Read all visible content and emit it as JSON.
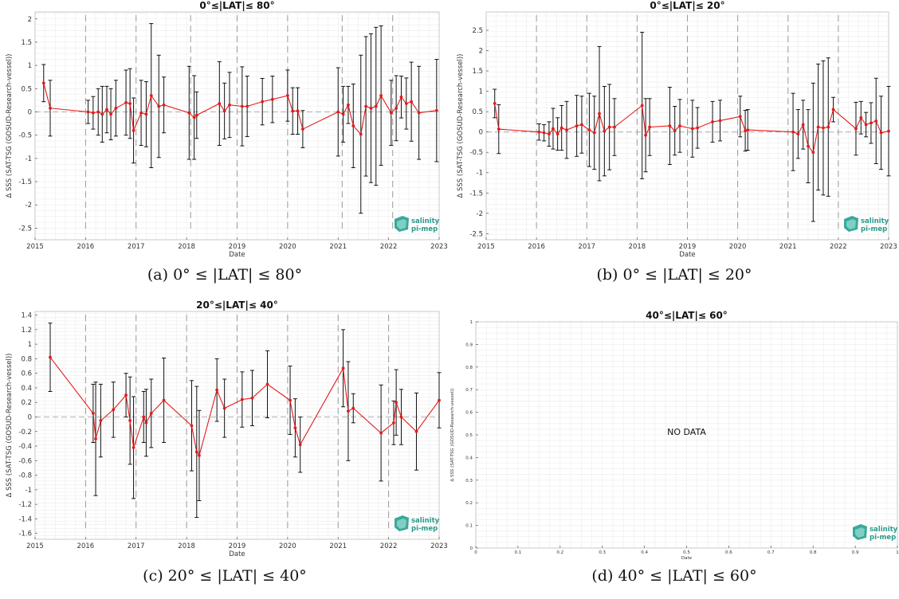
{
  "logo": {
    "line1": "salinity",
    "line2": "pi-mep",
    "color": "#2a9a8a"
  },
  "colors": {
    "series": "#e41a1c",
    "errorbar": "#111111",
    "vline": "#9a9a9a",
    "zeroline": "#b0b0b0",
    "grid": "#ececec"
  },
  "panels": [
    {
      "caption": "(a) 0° ≤ |LAT| ≤ 80°",
      "chart_data": {
        "type": "line",
        "title": "0°≤|LAT|≤ 80°",
        "xlabel": "Date",
        "ylabel": "Δ SSS (SAT-TSG (GOSUD-Research-vessel))",
        "xlim": [
          2015,
          2023
        ],
        "ylim": [
          -2.75,
          2.15
        ],
        "xticks": [
          2015,
          2016,
          2017,
          2018,
          2019,
          2020,
          2021,
          2022,
          2023
        ],
        "yticks": [
          -2.5,
          -2,
          -1.5,
          -1,
          -0.5,
          0,
          0.5,
          1,
          1.5,
          2
        ],
        "ytick_labels": [
          "-2.5",
          "-2",
          "-1.5",
          "-1",
          "-0.5",
          "0",
          "0.5",
          "1",
          "1.5",
          "2"
        ],
        "vlines": [
          2016,
          2017,
          2018.08,
          2019,
          2020,
          2021.08,
          2022.08
        ],
        "grid": true,
        "series": [
          {
            "x": [
              2015.17,
              2015.3,
              2016.05,
              2016.15,
              2016.25,
              2016.33,
              2016.42,
              2016.5,
              2016.6,
              2016.8,
              2016.88,
              2016.95,
              2017.1,
              2017.2,
              2017.3,
              2017.45,
              2017.55,
              2018.05,
              2018.15,
              2018.2,
              2018.65,
              2018.75,
              2018.85,
              2019.1,
              2019.2,
              2019.5,
              2019.7,
              2020,
              2020.1,
              2020.2,
              2020.3,
              2021,
              2021.1,
              2021.2,
              2021.3,
              2021.45,
              2021.55,
              2021.65,
              2021.75,
              2021.85,
              2022.05,
              2022.15,
              2022.25,
              2022.35,
              2022.45,
              2022.6,
              2022.95
            ],
            "y": [
              0.62,
              0.08,
              0,
              -0.02,
              0,
              -0.05,
              0.05,
              -0.05,
              0.08,
              0.2,
              0.18,
              -0.4,
              -0.02,
              -0.05,
              0.35,
              0.12,
              0.15,
              -0.02,
              -0.12,
              -0.07,
              0.18,
              0.02,
              0.15,
              0.12,
              0.12,
              0.22,
              0.27,
              0.35,
              0.02,
              0.02,
              -0.37,
              0,
              -0.05,
              0.15,
              -0.3,
              -0.48,
              0.12,
              0.08,
              0.12,
              0.35,
              -0.02,
              0.08,
              0.32,
              0.18,
              0.22,
              -0.02,
              0.03
            ],
            "err": [
              0.4,
              0.6,
              0.25,
              0.35,
              0.5,
              0.6,
              0.5,
              0.55,
              0.6,
              0.7,
              0.75,
              0.7,
              0.7,
              0.7,
              1.55,
              1.1,
              0.6,
              1.0,
              0.9,
              0.5,
              0.9,
              0.6,
              0.7,
              0.85,
              0.65,
              0.5,
              0.5,
              0.55,
              0.5,
              0.5,
              0.4,
              0.95,
              0.6,
              0.4,
              0.9,
              1.7,
              1.5,
              1.6,
              1.7,
              1.5,
              0.7,
              0.7,
              0.45,
              0.55,
              0.85,
              1.0,
              1.1
            ]
          }
        ]
      }
    },
    {
      "caption": "(b) 0° ≤ |LAT| ≤ 20°",
      "chart_data": {
        "type": "line",
        "title": "0°≤|LAT|≤ 20°",
        "xlabel": "Date",
        "ylabel": "Δ SSS (SAT-TSG (GOSUD-Research-vessel))",
        "xlim": [
          2015,
          2023
        ],
        "ylim": [
          -2.65,
          2.95
        ],
        "xticks": [
          2015,
          2016,
          2017,
          2018,
          2019,
          2020,
          2021,
          2022,
          2023
        ],
        "yticks": [
          -2.5,
          -2,
          -1.5,
          -1,
          -0.5,
          0,
          0.5,
          1,
          1.5,
          2,
          2.5
        ],
        "ytick_labels": [
          "-2.5",
          "-2",
          "-1.5",
          "-1",
          "-0.5",
          "0",
          "0.5",
          "1",
          "1.5",
          "2",
          "2.5"
        ],
        "vlines": [
          2016,
          2017,
          2018,
          2019,
          2020,
          2021,
          2022
        ],
        "grid": true,
        "series": [
          {
            "x": [
              2015.17,
              2015.25,
              2016.05,
              2016.15,
              2016.25,
              2016.33,
              2016.42,
              2016.5,
              2016.6,
              2016.8,
              2016.9,
              2017.05,
              2017.15,
              2017.25,
              2017.35,
              2017.45,
              2017.55,
              2018.1,
              2018.17,
              2018.25,
              2018.65,
              2018.75,
              2018.85,
              2019.1,
              2019.2,
              2019.5,
              2019.65,
              2020.05,
              2020.15,
              2020.2,
              2021.1,
              2021.2,
              2021.3,
              2021.4,
              2021.5,
              2021.6,
              2021.7,
              2021.8,
              2021.9,
              2022.35,
              2022.45,
              2022.55,
              2022.65,
              2022.75,
              2022.85,
              2023
            ],
            "y": [
              0.7,
              0.07,
              0,
              -0.02,
              -0.05,
              0.08,
              -0.05,
              0.1,
              0.05,
              0.15,
              0.18,
              0.05,
              -0.02,
              0.45,
              0.02,
              0.12,
              0.12,
              0.65,
              -0.08,
              0.12,
              0.15,
              0.03,
              0.15,
              0.08,
              0.1,
              0.25,
              0.28,
              0.38,
              0.03,
              0.05,
              0,
              -0.05,
              0.18,
              -0.35,
              -0.5,
              0.12,
              0.1,
              0.12,
              0.55,
              0.08,
              0.35,
              0.18,
              0.22,
              0.27,
              -0.02,
              0.02
            ],
            "err": [
              0.35,
              0.6,
              0.2,
              0.2,
              0.3,
              0.5,
              0.4,
              0.55,
              0.7,
              0.75,
              0.7,
              0.9,
              0.9,
              1.65,
              1.1,
              1.05,
              0.7,
              1.8,
              0.9,
              0.7,
              0.95,
              0.6,
              0.65,
              0.7,
              0.5,
              0.5,
              0.5,
              0.5,
              0.5,
              0.5,
              0.95,
              0.6,
              0.6,
              0.9,
              1.7,
              1.55,
              1.65,
              1.7,
              0.3,
              0.65,
              0.4,
              0.3,
              0.5,
              1.05,
              0.9,
              1.1
            ]
          }
        ]
      }
    },
    {
      "caption": "(c) 20° ≤ |LAT| ≤ 40°",
      "chart_data": {
        "type": "line",
        "title": "20°≤|LAT|≤ 40°",
        "xlabel": "Date",
        "ylabel": "Δ SSS (SAT-TSG (GOSUD-Research-vessel))",
        "xlim": [
          2015,
          2023
        ],
        "ylim": [
          -1.68,
          1.45
        ],
        "xticks": [
          2015,
          2016,
          2017,
          2018,
          2019,
          2020,
          2021,
          2022,
          2023
        ],
        "yticks": [
          -1.6,
          -1.4,
          -1.2,
          -1,
          -0.8,
          -0.6,
          -0.4,
          -0.2,
          0,
          0.2,
          0.4,
          0.6,
          0.8,
          1,
          1.2,
          1.4
        ],
        "ytick_labels": [
          "-1.6",
          "-1.4",
          "-1.2",
          "-1",
          "-0.8",
          "-0.6",
          "-0.4",
          "-0.2",
          "0",
          "0.2",
          "0.4",
          "0.6",
          "0.8",
          "1",
          "1.2",
          "1.4"
        ],
        "vlines": [
          2016,
          2017,
          2018,
          2019,
          2020,
          2021,
          2022
        ],
        "grid": true,
        "series": [
          {
            "x": [
              2015.3,
              2016.15,
              2016.2,
              2016.3,
              2016.55,
              2016.8,
              2016.88,
              2016.95,
              2017.15,
              2017.2,
              2017.3,
              2017.55,
              2018.1,
              2018.2,
              2018.25,
              2018.6,
              2018.75,
              2019.1,
              2019.3,
              2019.6,
              2020.05,
              2020.15,
              2020.25,
              2021.1,
              2021.2,
              2021.3,
              2021.85,
              2022.1,
              2022.15,
              2022.25,
              2022.55,
              2023
            ],
            "y": [
              0.82,
              0.05,
              -0.3,
              -0.05,
              0.1,
              0.3,
              -0.05,
              -0.42,
              0,
              -0.08,
              0.05,
              0.23,
              -0.12,
              -0.48,
              -0.53,
              0.37,
              0.12,
              0.24,
              0.26,
              0.45,
              0.23,
              -0.15,
              -0.38,
              0.67,
              0.08,
              0.12,
              -0.22,
              -0.08,
              0.2,
              0,
              -0.2,
              0.23
            ],
            "err": [
              0.47,
              0.4,
              0.78,
              0.5,
              0.38,
              0.3,
              0.6,
              0.7,
              0.35,
              0.46,
              0.47,
              0.58,
              0.62,
              0.9,
              0.62,
              0.43,
              0.4,
              0.38,
              0.38,
              0.46,
              0.47,
              0.4,
              0.38,
              0.53,
              0.68,
              0.2,
              0.66,
              0.3,
              0.45,
              0.38,
              0.53,
              0.38
            ]
          }
        ]
      }
    },
    {
      "caption": "(d) 40° ≤ |LAT| ≤ 60°",
      "chart_data": {
        "type": "line",
        "title": "40°≤|LAT|≤ 60°",
        "xlabel": "Date",
        "ylabel": "Δ SSS (SAT-TSG (GOSUD-Research-vessel))",
        "xlim": [
          0,
          1
        ],
        "ylim": [
          0,
          1
        ],
        "xticks": [
          0,
          0.1,
          0.2,
          0.3,
          0.4,
          0.5,
          0.6,
          0.7,
          0.8,
          0.9,
          1
        ],
        "yticks": [
          0,
          0.1,
          0.2,
          0.3,
          0.4,
          0.5,
          0.6,
          0.7,
          0.8,
          0.9,
          1
        ],
        "ytick_labels": [
          "0",
          "0.1",
          "0.2",
          "0.3",
          "0.4",
          "0.5",
          "0.6",
          "0.7",
          "0.8",
          "0.9",
          "1"
        ],
        "vlines": [],
        "grid": true,
        "annotation": "NO DATA",
        "series": []
      }
    }
  ]
}
